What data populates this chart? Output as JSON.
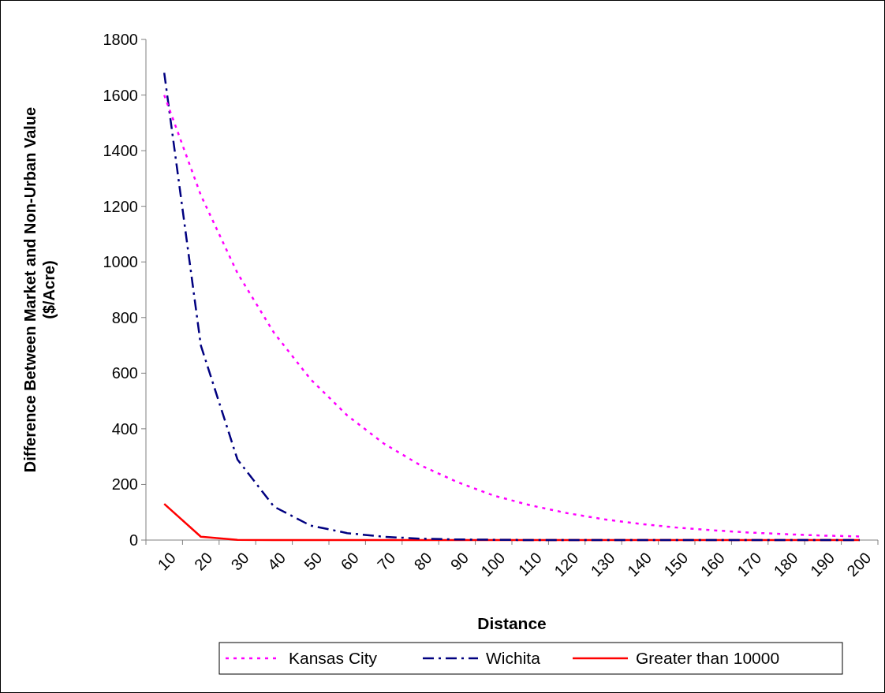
{
  "chart_data": {
    "type": "line",
    "xlabel": "Distance",
    "ylabel": "Difference Between Market and Non-Urban Value ($/Acre)",
    "categories": [
      "10",
      "20",
      "30",
      "40",
      "50",
      "60",
      "70",
      "80",
      "90",
      "100",
      "110",
      "120",
      "130",
      "140",
      "150",
      "160",
      "170",
      "180",
      "190",
      "200"
    ],
    "series": [
      {
        "name": "Kansas City",
        "color": "#ff00ff",
        "line_style": "dotted",
        "values": [
          1600,
          1240,
          960,
          745,
          578,
          448,
          347,
          269,
          209,
          160,
          125,
          97,
          75,
          58,
          45,
          35,
          27,
          21,
          16,
          13
        ]
      },
      {
        "name": "Wichita",
        "color": "#000080",
        "line_style": "dashdot",
        "values": [
          1680,
          700,
          290,
          120,
          52,
          25,
          12,
          5,
          2,
          1,
          0,
          0,
          0,
          0,
          0,
          0,
          0,
          0,
          0,
          0
        ]
      },
      {
        "name": "Greater than 10000",
        "color": "#ff0000",
        "line_style": "solid",
        "values": [
          130,
          12,
          1,
          0,
          0,
          0,
          0,
          0,
          0,
          0,
          0,
          0,
          0,
          0,
          0,
          0,
          0,
          0,
          0,
          0
        ]
      }
    ],
    "ylim": [
      0,
      1800
    ],
    "yticks": [
      0,
      200,
      400,
      600,
      800,
      1000,
      1200,
      1400,
      1600,
      1800
    ],
    "grid": false,
    "legend": "bottom",
    "marker": "none"
  }
}
